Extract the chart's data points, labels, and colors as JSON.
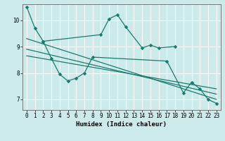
{
  "xlabel": "Humidex (Indice chaleur)",
  "bg_color": "#cceaea",
  "line_color": "#1a7a6e",
  "grid_color": "#ffffff",
  "xlim": [
    -0.5,
    23.5
  ],
  "ylim": [
    6.6,
    10.6
  ],
  "yticks": [
    7,
    8,
    9,
    10
  ],
  "xticks": [
    0,
    1,
    2,
    3,
    4,
    5,
    6,
    7,
    8,
    9,
    10,
    11,
    12,
    13,
    14,
    15,
    16,
    17,
    18,
    19,
    20,
    21,
    22,
    23
  ],
  "curve1_x": [
    0,
    1,
    2,
    9,
    10,
    11,
    12,
    14,
    15,
    16,
    18
  ],
  "curve1_y": [
    10.5,
    9.7,
    9.2,
    9.45,
    10.05,
    10.2,
    9.75,
    8.95,
    9.05,
    8.95,
    9.0
  ],
  "curve2_x": [
    2,
    3,
    4,
    5,
    6,
    7,
    8,
    17,
    19,
    20,
    21,
    22,
    23
  ],
  "curve2_y": [
    9.2,
    8.55,
    7.95,
    7.7,
    7.8,
    8.0,
    8.6,
    8.45,
    7.25,
    7.65,
    7.4,
    7.0,
    6.85
  ],
  "trend1_x": [
    0,
    23
  ],
  "trend1_y": [
    9.3,
    7.0
  ],
  "trend2_x": [
    0,
    23
  ],
  "trend2_y": [
    8.9,
    7.2
  ],
  "trend3_x": [
    0,
    23
  ],
  "trend3_y": [
    8.65,
    7.4
  ]
}
